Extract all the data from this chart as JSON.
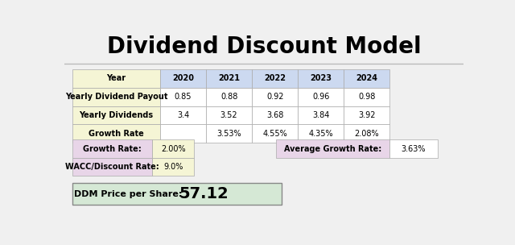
{
  "title": "Dividend Discount Model",
  "title_fontsize": 20,
  "title_fontweight": "bold",
  "bg_color": "#f0f0f0",
  "row_labels": [
    "Year",
    "Yearly Dividend Payout",
    "Yearly Dividends",
    "Growth Rate"
  ],
  "table_data": [
    [
      "2020",
      "2021",
      "2022",
      "2023",
      "2024"
    ],
    [
      "0.85",
      "0.88",
      "0.92",
      "0.96",
      "0.98"
    ],
    [
      "3.4",
      "3.52",
      "3.68",
      "3.84",
      "3.92"
    ],
    [
      "",
      "3.53%",
      "4.55%",
      "4.35%",
      "2.08%"
    ]
  ],
  "label_bg": "#f5f5d5",
  "header_bg": "#ccd9f0",
  "cell_bg": "#ffffff",
  "growth_rate_label": "Growth Rate:",
  "growth_rate_value": "2.00%",
  "wacc_label": "WACC/Discount Rate:",
  "wacc_value": "9.0%",
  "avg_growth_label": "Average Growth Rate:",
  "avg_growth_value": "3.63%",
  "ddm_label": "DDM Price per Share:",
  "ddm_value": "57.12",
  "label_pink": "#e8d5e8",
  "value_yellow": "#f5f5d5",
  "value_pink": "#e8d5e8",
  "ddm_green": "#d5e8d5",
  "line_color": "#bbbbbb",
  "edge_color": "#aaaaaa"
}
